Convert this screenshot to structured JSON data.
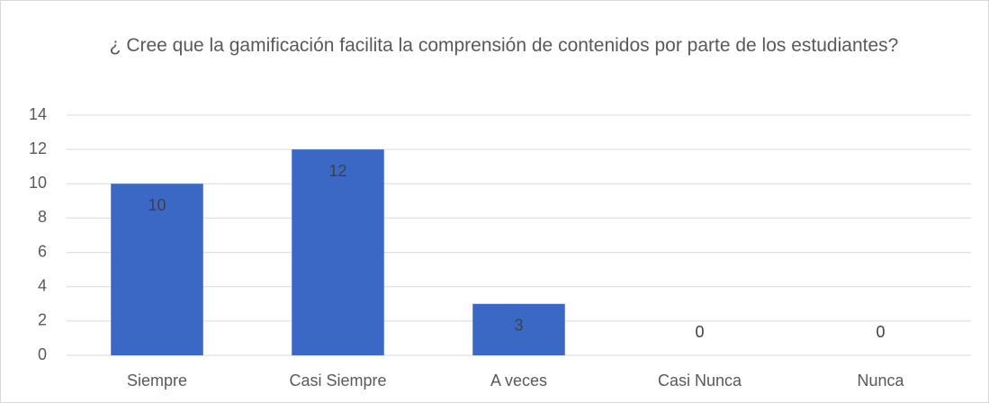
{
  "chart_data": {
    "type": "bar",
    "title": "¿ Cree que la gamificación facilita la comprensión de contenidos por parte de los estudiantes?",
    "categories": [
      "Siempre",
      "Casi Siempre",
      "A veces",
      "Casi Nunca",
      "Nunca"
    ],
    "values": [
      10,
      12,
      3,
      0,
      0
    ],
    "color": "#3a68c4",
    "ylim": [
      0,
      14
    ],
    "yticks": [
      0,
      2,
      4,
      6,
      8,
      10,
      12,
      14
    ],
    "grid": true,
    "data_labels": true
  }
}
